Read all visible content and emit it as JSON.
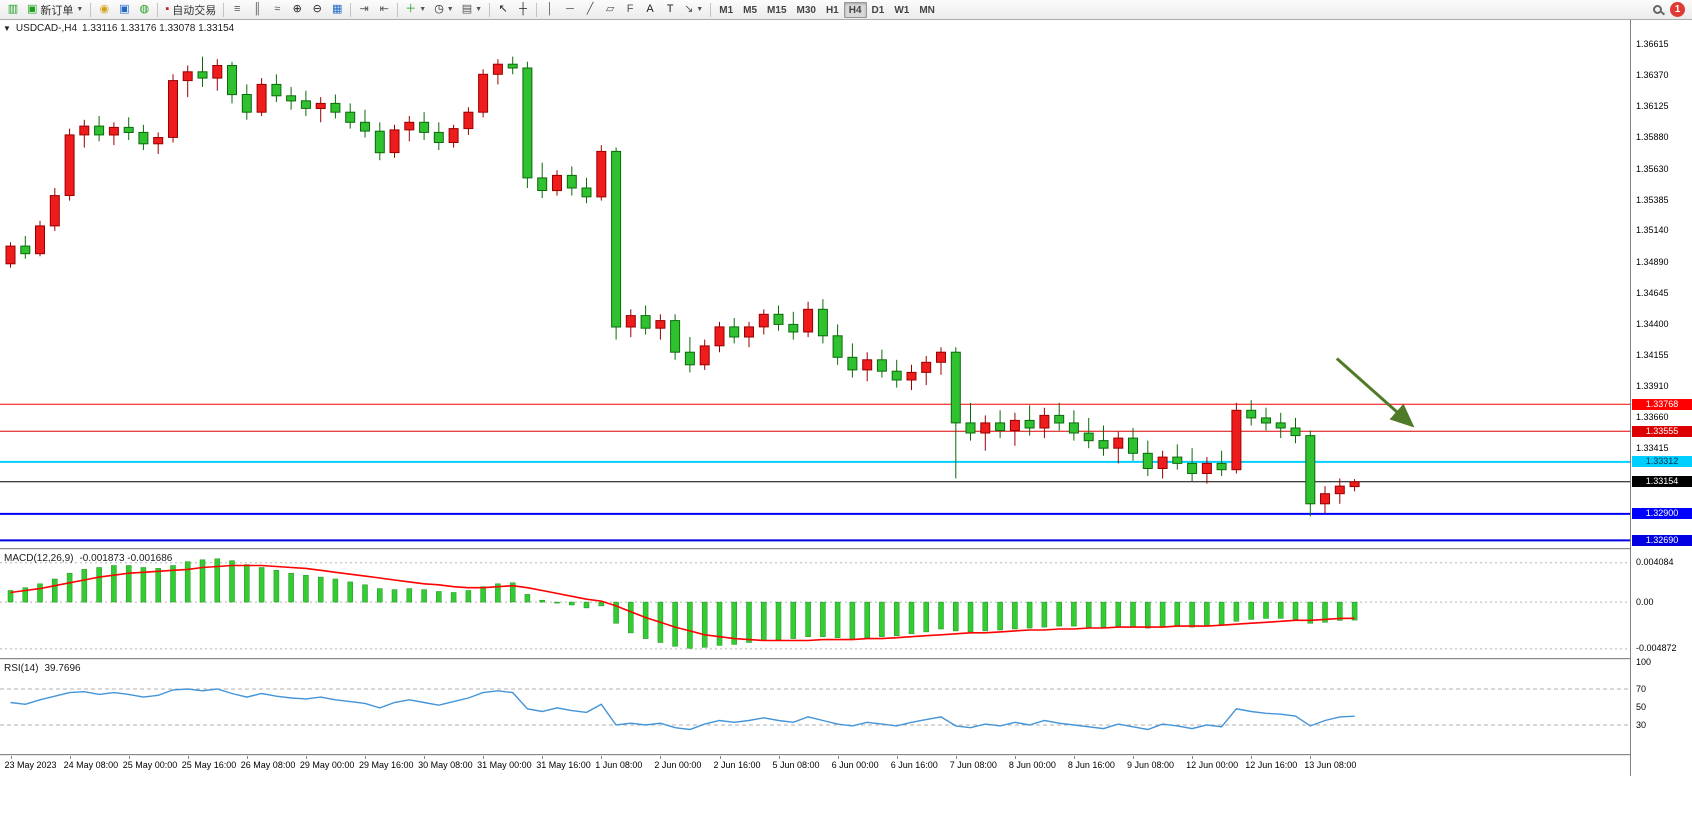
{
  "toolbar": {
    "new_order_label": "新订单",
    "autotrade_label": "自动交易",
    "timeframes": [
      {
        "label": "M1"
      },
      {
        "label": "M5"
      },
      {
        "label": "M15"
      },
      {
        "label": "M30"
      },
      {
        "label": "H1"
      },
      {
        "label": "H4",
        "active": true
      },
      {
        "label": "D1"
      },
      {
        "label": "W1"
      },
      {
        "label": "MN"
      }
    ],
    "notification_count": "1"
  },
  "chart_title": {
    "symbol_period": "USDCAD-,H4",
    "ohlc": "1.33116 1.33176 1.33078 1.33154"
  },
  "chart_data": {
    "type": "candlestick",
    "symbol": "USDCAD",
    "period": "H4",
    "current_ohlc": {
      "open": "1.33116",
      "high": "1.33176",
      "low": "1.33078",
      "close": "1.33154"
    },
    "price_scale": {
      "max": 1.3681,
      "min": 1.3263
    },
    "price_axis_labels": [
      "1.36615",
      "1.36370",
      "1.36125",
      "1.35880",
      "1.35630",
      "1.35385",
      "1.35140",
      "1.34890",
      "1.34645",
      "1.34400",
      "1.34155",
      "1.33910",
      "1.33660",
      "1.33415"
    ],
    "time_labels": [
      {
        "text": "23 May 2023",
        "index": 0
      },
      {
        "text": "24 May 08:00",
        "index": 4
      },
      {
        "text": "25 May 00:00",
        "index": 8
      },
      {
        "text": "25 May 16:00",
        "index": 12
      },
      {
        "text": "26 May 08:00",
        "index": 16
      },
      {
        "text": "29 May 00:00",
        "index": 20
      },
      {
        "text": "29 May 16:00",
        "index": 24
      },
      {
        "text": "30 May 08:00",
        "index": 28
      },
      {
        "text": "31 May 00:00",
        "index": 32
      },
      {
        "text": "31 May 16:00",
        "index": 36
      },
      {
        "text": "1 Jun 08:00",
        "index": 40
      },
      {
        "text": "2 Jun 00:00",
        "index": 44
      },
      {
        "text": "2 Jun 16:00",
        "index": 48
      },
      {
        "text": "5 Jun 08:00",
        "index": 52
      },
      {
        "text": "6 Jun 00:00",
        "index": 56
      },
      {
        "text": "6 Jun 16:00",
        "index": 60
      },
      {
        "text": "7 Jun 08:00",
        "index": 64
      },
      {
        "text": "8 Jun 00:00",
        "index": 68
      },
      {
        "text": "8 Jun 16:00",
        "index": 72
      },
      {
        "text": "9 Jun 08:00",
        "index": 76
      },
      {
        "text": "12 Jun 00:00",
        "index": 80
      },
      {
        "text": "12 Jun 16:00",
        "index": 84
      },
      {
        "text": "13 Jun 08:00",
        "index": 88
      }
    ],
    "candles": [
      [
        1.3488,
        1.3505,
        1.3485,
        1.3502
      ],
      [
        1.3502,
        1.351,
        1.3492,
        1.3496
      ],
      [
        1.3496,
        1.3522,
        1.3494,
        1.3518
      ],
      [
        1.3518,
        1.3548,
        1.3514,
        1.3542
      ],
      [
        1.3542,
        1.3595,
        1.3538,
        1.359
      ],
      [
        1.359,
        1.3602,
        1.358,
        1.3597
      ],
      [
        1.3597,
        1.3605,
        1.3585,
        1.359
      ],
      [
        1.359,
        1.36,
        1.3582,
        1.3596
      ],
      [
        1.3596,
        1.3604,
        1.3586,
        1.3592
      ],
      [
        1.3592,
        1.3598,
        1.3578,
        1.3583
      ],
      [
        1.3583,
        1.3592,
        1.3575,
        1.3588
      ],
      [
        1.3588,
        1.3638,
        1.3584,
        1.3633
      ],
      [
        1.3633,
        1.3645,
        1.362,
        1.364
      ],
      [
        1.364,
        1.3652,
        1.3628,
        1.3635
      ],
      [
        1.3635,
        1.365,
        1.3625,
        1.3645
      ],
      [
        1.3645,
        1.3648,
        1.3615,
        1.3622
      ],
      [
        1.3622,
        1.363,
        1.3602,
        1.3608
      ],
      [
        1.3608,
        1.3635,
        1.3605,
        1.363
      ],
      [
        1.363,
        1.3638,
        1.3616,
        1.3621
      ],
      [
        1.3621,
        1.3628,
        1.361,
        1.3617
      ],
      [
        1.3617,
        1.3625,
        1.3605,
        1.3611
      ],
      [
        1.3611,
        1.362,
        1.36,
        1.3615
      ],
      [
        1.3615,
        1.3622,
        1.3603,
        1.3608
      ],
      [
        1.3608,
        1.3615,
        1.3595,
        1.36
      ],
      [
        1.36,
        1.361,
        1.3588,
        1.3593
      ],
      [
        1.3593,
        1.36,
        1.357,
        1.3576
      ],
      [
        1.3576,
        1.3598,
        1.3572,
        1.3594
      ],
      [
        1.3594,
        1.3605,
        1.3585,
        1.36
      ],
      [
        1.36,
        1.3608,
        1.3586,
        1.3592
      ],
      [
        1.3592,
        1.36,
        1.3578,
        1.3584
      ],
      [
        1.3584,
        1.3598,
        1.358,
        1.3595
      ],
      [
        1.3595,
        1.3612,
        1.359,
        1.3608
      ],
      [
        1.3608,
        1.3642,
        1.3604,
        1.3638
      ],
      [
        1.3638,
        1.365,
        1.363,
        1.3646
      ],
      [
        1.3646,
        1.3652,
        1.3638,
        1.3643
      ],
      [
        1.3643,
        1.3648,
        1.3548,
        1.3556
      ],
      [
        1.3556,
        1.3568,
        1.354,
        1.3546
      ],
      [
        1.3546,
        1.3562,
        1.3542,
        1.3558
      ],
      [
        1.3558,
        1.3565,
        1.3542,
        1.3548
      ],
      [
        1.3548,
        1.3556,
        1.3536,
        1.3541
      ],
      [
        1.3541,
        1.3582,
        1.3538,
        1.3577
      ],
      [
        1.3577,
        1.358,
        1.3428,
        1.3438
      ],
      [
        1.3438,
        1.3452,
        1.343,
        1.3447
      ],
      [
        1.3447,
        1.3455,
        1.3432,
        1.3437
      ],
      [
        1.3437,
        1.3448,
        1.3428,
        1.3443
      ],
      [
        1.3443,
        1.3448,
        1.3412,
        1.3418
      ],
      [
        1.3418,
        1.343,
        1.3402,
        1.3408
      ],
      [
        1.3408,
        1.3428,
        1.3404,
        1.3423
      ],
      [
        1.3423,
        1.3442,
        1.3418,
        1.3438
      ],
      [
        1.3438,
        1.3445,
        1.3425,
        1.343
      ],
      [
        1.343,
        1.3442,
        1.3422,
        1.3438
      ],
      [
        1.3438,
        1.3452,
        1.3432,
        1.3448
      ],
      [
        1.3448,
        1.3455,
        1.3435,
        1.344
      ],
      [
        1.344,
        1.345,
        1.3428,
        1.3434
      ],
      [
        1.3434,
        1.3458,
        1.343,
        1.3452
      ],
      [
        1.3452,
        1.346,
        1.3425,
        1.3431
      ],
      [
        1.3431,
        1.344,
        1.3408,
        1.3414
      ],
      [
        1.3414,
        1.3425,
        1.3398,
        1.3404
      ],
      [
        1.3404,
        1.3418,
        1.3395,
        1.3412
      ],
      [
        1.3412,
        1.342,
        1.3398,
        1.3403
      ],
      [
        1.3403,
        1.3412,
        1.339,
        1.3396
      ],
      [
        1.3396,
        1.3408,
        1.3388,
        1.3402
      ],
      [
        1.3402,
        1.3415,
        1.3392,
        1.341
      ],
      [
        1.341,
        1.3422,
        1.34,
        1.3418
      ],
      [
        1.3418,
        1.3422,
        1.3318,
        1.3362
      ],
      [
        1.3362,
        1.3378,
        1.3348,
        1.3354
      ],
      [
        1.3354,
        1.3368,
        1.334,
        1.3362
      ],
      [
        1.3362,
        1.3372,
        1.335,
        1.3356
      ],
      [
        1.3356,
        1.337,
        1.3344,
        1.3364
      ],
      [
        1.3364,
        1.3376,
        1.3352,
        1.3358
      ],
      [
        1.3358,
        1.3374,
        1.335,
        1.3368
      ],
      [
        1.3368,
        1.3378,
        1.3356,
        1.3362
      ],
      [
        1.3362,
        1.3372,
        1.3348,
        1.3354
      ],
      [
        1.3354,
        1.3366,
        1.3342,
        1.3348
      ],
      [
        1.3348,
        1.336,
        1.3336,
        1.3342
      ],
      [
        1.3342,
        1.3355,
        1.333,
        1.335
      ],
      [
        1.335,
        1.3358,
        1.3332,
        1.3338
      ],
      [
        1.3338,
        1.3348,
        1.332,
        1.3326
      ],
      [
        1.3326,
        1.334,
        1.3318,
        1.3335
      ],
      [
        1.3335,
        1.3345,
        1.3325,
        1.333
      ],
      [
        1.333,
        1.3342,
        1.3316,
        1.3322
      ],
      [
        1.3322,
        1.3335,
        1.3314,
        1.333
      ],
      [
        1.333,
        1.334,
        1.332,
        1.3325
      ],
      [
        1.3325,
        1.3378,
        1.3322,
        1.3372
      ],
      [
        1.3372,
        1.338,
        1.336,
        1.3366
      ],
      [
        1.3366,
        1.3374,
        1.3356,
        1.3362
      ],
      [
        1.3362,
        1.337,
        1.335,
        1.3358
      ],
      [
        1.3358,
        1.3366,
        1.3346,
        1.3352
      ],
      [
        1.3352,
        1.3356,
        1.3288,
        1.3298
      ],
      [
        1.3298,
        1.3312,
        1.329,
        1.3306
      ],
      [
        1.3306,
        1.3318,
        1.3298,
        1.3312
      ],
      [
        1.33116,
        1.33176,
        1.33078,
        1.33154
      ]
    ],
    "levels": [
      {
        "label": "1.33768",
        "price": 1.33768,
        "color": "#FF0000",
        "badge_bg": "#FF0000",
        "text_color": "#FFFFFF",
        "width": 1
      },
      {
        "label": "1.33555",
        "price": 1.33555,
        "color": "#DD0000",
        "badge_bg": "#DD0000",
        "text_color": "#FFFFFF",
        "width": 1
      },
      {
        "label": "1.33312",
        "price": 1.33312,
        "color": "#00CFFF",
        "badge_bg": "#00CFFF",
        "text_color": "#003344",
        "width": 2
      },
      {
        "label": "1.32900",
        "price": 1.329,
        "color": "#0000FF",
        "badge_bg": "#0000FF",
        "text_color": "#FFFFFF",
        "width": 2
      },
      {
        "label": "1.32690",
        "price": 1.3269,
        "color": "#0000E0",
        "badge_bg": "#0000E0",
        "text_color": "#FFFFFF",
        "width": 2
      }
    ],
    "current_price": {
      "label": "1.33154",
      "value": 1.33154,
      "color": "#000000",
      "badge_bg": "#000000",
      "text_color": "#FFFFFF"
    },
    "arrow": {
      "from_bar": 89.8,
      "from_price": 1.3413,
      "to_bar": 94.9,
      "to_price": 1.336,
      "color": "#4F7A28"
    },
    "colors": {
      "up": "#EE1C1C",
      "up_border": "#990000",
      "down": "#2FC12F",
      "down_border": "#0B6B0B",
      "background": "#FFFFFF"
    },
    "macd": {
      "label": "MACD(12,26,9)",
      "values_text": "-0.001873 -0.001686",
      "axis_labels": [
        "0.004084",
        "0.00",
        "-0.004872"
      ],
      "axis_values": [
        0.004084,
        0,
        -0.004872
      ],
      "range": [
        -0.0054,
        0.005
      ],
      "bar_color": "#33CC33",
      "bar_border": "#1E8E1E",
      "signal_color": "#FF0000",
      "histogram": [
        0.0012,
        0.0015,
        0.0019,
        0.0024,
        0.003,
        0.0034,
        0.0036,
        0.0038,
        0.0038,
        0.0036,
        0.0035,
        0.0038,
        0.0042,
        0.0044,
        0.0045,
        0.0043,
        0.0039,
        0.0036,
        0.0033,
        0.003,
        0.0028,
        0.0026,
        0.0024,
        0.0021,
        0.0018,
        0.0014,
        0.0013,
        0.0014,
        0.0013,
        0.0011,
        0.001,
        0.0012,
        0.0016,
        0.0019,
        0.002,
        0.0008,
        0.0002,
        0.0,
        -0.0003,
        -0.0006,
        -0.0004,
        -0.0022,
        -0.0032,
        -0.0038,
        -0.0042,
        -0.0046,
        -0.0048,
        -0.0047,
        -0.0045,
        -0.0044,
        -0.0042,
        -0.004,
        -0.0039,
        -0.0038,
        -0.0036,
        -0.0036,
        -0.0037,
        -0.0038,
        -0.0037,
        -0.0036,
        -0.0035,
        -0.0033,
        -0.0031,
        -0.0028,
        -0.003,
        -0.0031,
        -0.003,
        -0.0029,
        -0.0028,
        -0.0027,
        -0.0026,
        -0.0025,
        -0.0025,
        -0.0026,
        -0.0026,
        -0.0025,
        -0.0026,
        -0.0027,
        -0.0026,
        -0.0025,
        -0.0026,
        -0.0025,
        -0.0024,
        -0.002,
        -0.0018,
        -0.0017,
        -0.0017,
        -0.0018,
        -0.0022,
        -0.0021,
        -0.0019,
        -0.001873
      ],
      "signal": [
        0.001,
        0.0012,
        0.0014,
        0.0017,
        0.002,
        0.0023,
        0.0026,
        0.0028,
        0.003,
        0.0031,
        0.0032,
        0.0033,
        0.0034,
        0.0036,
        0.0037,
        0.0038,
        0.0038,
        0.0038,
        0.0037,
        0.0036,
        0.0035,
        0.0033,
        0.0031,
        0.0029,
        0.0027,
        0.0025,
        0.0023,
        0.0021,
        0.0019,
        0.0018,
        0.0016,
        0.0015,
        0.0015,
        0.0016,
        0.0017,
        0.0015,
        0.0012,
        0.0009,
        0.0006,
        0.0003,
        0.0001,
        -0.0004,
        -0.001,
        -0.0016,
        -0.0021,
        -0.0026,
        -0.003,
        -0.0034,
        -0.0036,
        -0.0038,
        -0.0039,
        -0.004,
        -0.004,
        -0.004,
        -0.004,
        -0.0039,
        -0.0039,
        -0.0039,
        -0.0038,
        -0.0038,
        -0.0037,
        -0.0036,
        -0.0035,
        -0.0034,
        -0.0033,
        -0.0032,
        -0.0032,
        -0.0031,
        -0.003,
        -0.0029,
        -0.0029,
        -0.0028,
        -0.0028,
        -0.0027,
        -0.0027,
        -0.0026,
        -0.0026,
        -0.0026,
        -0.0026,
        -0.0025,
        -0.0025,
        -0.0025,
        -0.0024,
        -0.0023,
        -0.0022,
        -0.0021,
        -0.002,
        -0.0019,
        -0.0019,
        -0.0018,
        -0.0017,
        -0.001686
      ]
    },
    "rsi": {
      "label": "RSI(14)",
      "value_text": "39.7696",
      "line_color": "#4394D8",
      "level_lines": [
        70,
        30
      ],
      "axis_labels": [
        {
          "text": "100",
          "value": 100
        },
        {
          "text": "70",
          "value": 70
        },
        {
          "text": "50",
          "value": 50
        },
        {
          "text": "30",
          "value": 30
        }
      ],
      "values": [
        55,
        53,
        58,
        62,
        66,
        67,
        64,
        66,
        64,
        61,
        63,
        69,
        70,
        68,
        70,
        65,
        61,
        65,
        62,
        60,
        59,
        61,
        58,
        56,
        54,
        49,
        55,
        58,
        55,
        52,
        56,
        60,
        66,
        68,
        66,
        48,
        45,
        49,
        46,
        44,
        53,
        30,
        32,
        30,
        32,
        27,
        25,
        31,
        35,
        33,
        35,
        38,
        35,
        33,
        39,
        35,
        31,
        29,
        33,
        31,
        29,
        33,
        36,
        39,
        29,
        27,
        31,
        29,
        33,
        30,
        35,
        32,
        30,
        28,
        26,
        31,
        28,
        25,
        31,
        29,
        26,
        30,
        28,
        48,
        45,
        43,
        42,
        40,
        29,
        35,
        39,
        39.77
      ]
    }
  }
}
